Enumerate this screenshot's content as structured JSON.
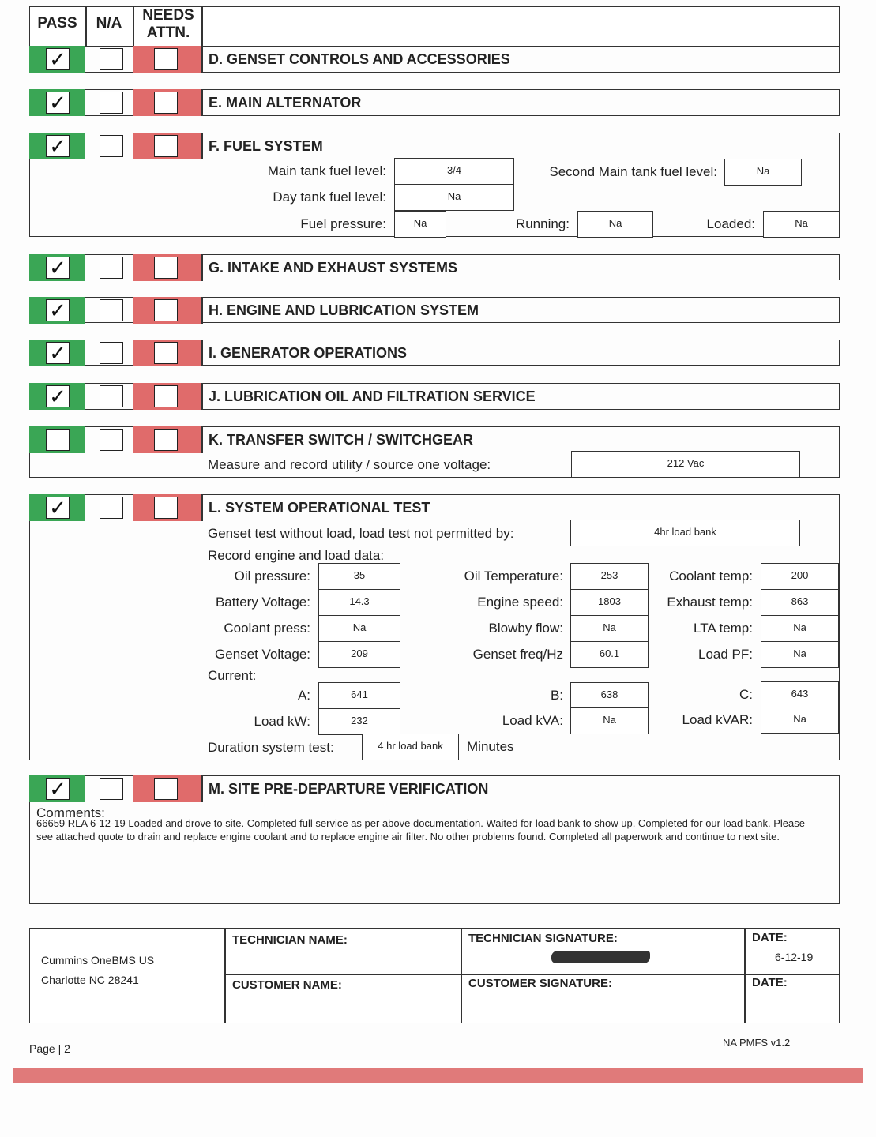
{
  "header": {
    "pass": "PASS",
    "na": "N/A",
    "needs": "NEEDS ATTN."
  },
  "colors": {
    "pass": "#3aa655",
    "needs_attention": "#e06b6b",
    "bottom_bar": "#e07a7a"
  },
  "check_icon": "checkmark-icon",
  "check_glyph": "✓",
  "sections": [
    {
      "title": "D. GENSET CONTROLS AND ACCESSORIES",
      "pass": true
    },
    {
      "title": "E. MAIN ALTERNATOR",
      "pass": true
    },
    {
      "title": "F. FUEL SYSTEM",
      "pass": true
    },
    {
      "title": "G. INTAKE AND EXHAUST SYSTEMS",
      "pass": true
    },
    {
      "title": "H. ENGINE AND LUBRICATION SYSTEM",
      "pass": true
    },
    {
      "title": "I. GENERATOR OPERATIONS",
      "pass": true
    },
    {
      "title": "J. LUBRICATION OIL AND FILTRATION SERVICE",
      "pass": true
    },
    {
      "title": "K. TRANSFER SWITCH / SWITCHGEAR",
      "pass": false
    },
    {
      "title": "L. SYSTEM OPERATIONAL TEST",
      "pass": true
    },
    {
      "title": "M. SITE PRE-DEPARTURE VERIFICATION",
      "pass": true
    }
  ],
  "fuel": {
    "main_tank": {
      "label": "Main tank fuel level:",
      "value": "3/4"
    },
    "second_main_tank": {
      "label": "Second Main tank fuel level:",
      "value": "Na"
    },
    "day_tank": {
      "label": "Day tank fuel level:",
      "value": "Na"
    },
    "fuel_pressure": {
      "label": "Fuel pressure:",
      "value": "Na"
    },
    "running": {
      "label": "Running:",
      "value": "Na"
    },
    "loaded": {
      "label": "Loaded:",
      "value": "Na"
    }
  },
  "transfer": {
    "label": "Measure and record utility / source one voltage:",
    "value": "212 Vac"
  },
  "test": {
    "no_load": {
      "label": "Genset test without load, load test not permitted by:",
      "value": "4hr load bank"
    },
    "record_label": "Record engine and load data:",
    "oil_pressure": {
      "label": "Oil pressure:",
      "value": "35"
    },
    "battery_voltage": {
      "label": "Battery Voltage:",
      "value": "14.3"
    },
    "coolant_press": {
      "label": "Coolant press:",
      "value": "Na"
    },
    "genset_voltage": {
      "label": "Genset Voltage:",
      "value": "209"
    },
    "oil_temp": {
      "label": "Oil Temperature:",
      "value": "253"
    },
    "engine_speed": {
      "label": "Engine speed:",
      "value": "1803"
    },
    "blowby_flow": {
      "label": "Blowby flow:",
      "value": "Na"
    },
    "genset_freq": {
      "label": "Genset freq/Hz",
      "value": "60.1"
    },
    "coolant_temp": {
      "label": "Coolant temp:",
      "value": "200"
    },
    "exhaust_temp": {
      "label": "Exhaust temp:",
      "value": "863"
    },
    "lta_temp": {
      "label": "LTA temp:",
      "value": "Na"
    },
    "load_pf": {
      "label": "Load PF:",
      "value": "Na"
    },
    "current_label": "Current:",
    "current_a": {
      "label": "A:",
      "value": "641"
    },
    "current_b": {
      "label": "B:",
      "value": "638"
    },
    "current_c": {
      "label": "C:",
      "value": "643"
    },
    "load_kw": {
      "label": "Load kW:",
      "value": "232"
    },
    "load_kva": {
      "label": "Load kVA:",
      "value": "Na"
    },
    "load_kvar": {
      "label": "Load kVAR:",
      "value": "Na"
    },
    "duration": {
      "label": "Duration system test:",
      "value": "4 hr load bank",
      "unit": "Minutes"
    }
  },
  "comments": {
    "label": "Comments:",
    "text": "66659 RLA 6-12-19 Loaded and drove to site. Completed full service as per above documentation. Waited for load bank to show up. Completed for our load bank. Please see attached quote to drain and replace engine coolant and to replace engine air filter. No other problems found. Completed all paperwork and continue to next site."
  },
  "footer": {
    "company": "Cummins OneBMS US",
    "address": "Charlotte NC 28241",
    "technician_name_label": "TECHNICIAN NAME:",
    "technician_signature_label": "TECHNICIAN SIGNATURE:",
    "date_label": "DATE:",
    "tech_date": "6-12-19",
    "customer_name_label": "CUSTOMER NAME:",
    "customer_signature_label": "CUSTOMER SIGNATURE:",
    "customer_date_label": "DATE:",
    "page": "Page | 2",
    "version": "NA PMFS v1.2"
  }
}
